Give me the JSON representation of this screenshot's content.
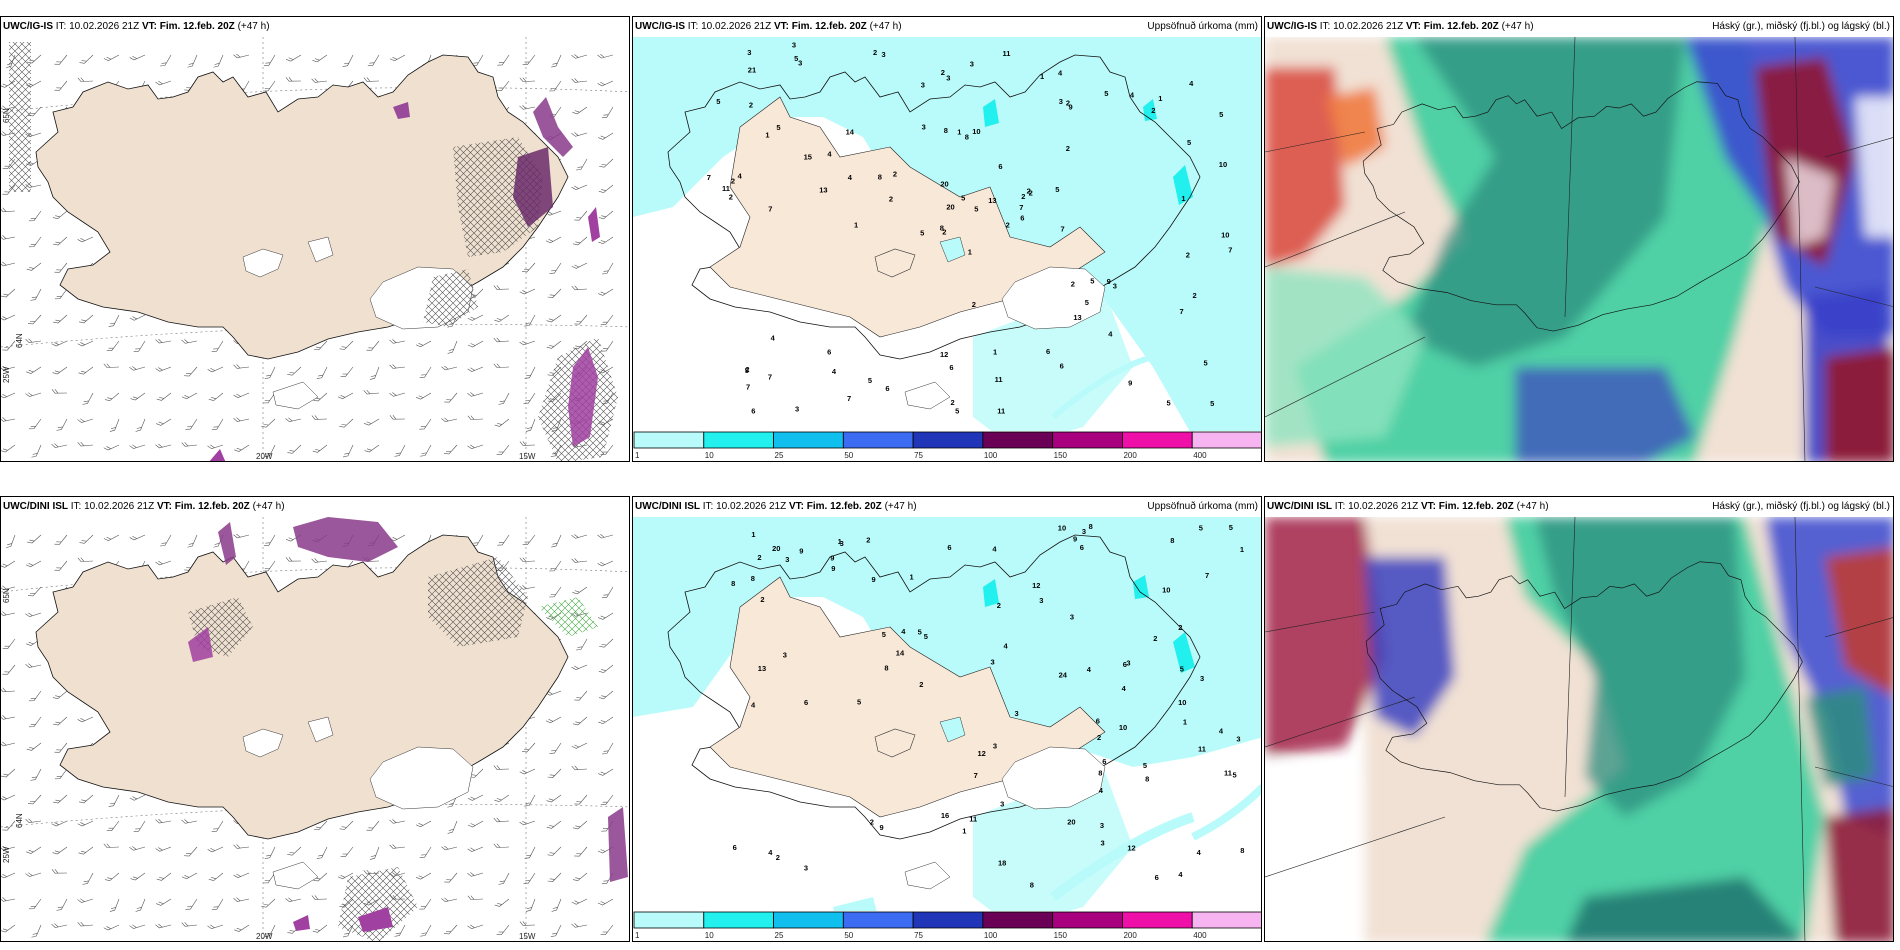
{
  "panels": [
    {
      "model": "UWC/IG-IS",
      "it": "IT: 10.02.2026 21Z",
      "vt_label": "VT:",
      "vt": "Fim. 12.feb. 20Z",
      "lead": "(+47 h)",
      "right": ""
    },
    {
      "model": "UWC/IG-IS",
      "it": "IT: 10.02.2026 21Z",
      "vt_label": "VT:",
      "vt": "Fim. 12.feb. 20Z",
      "lead": "(+47 h)",
      "right": "Uppsöfnuð úrkoma (mm)"
    },
    {
      "model": "UWC/IG-IS",
      "it": "IT: 10.02.2026 21Z",
      "vt_label": "VT:",
      "vt": "Fim. 12.feb. 20Z",
      "lead": "(+47 h)",
      "right": "Háský (gr.), miðský (fj.bl.) og lágský (bl.)"
    },
    {
      "model": "UWC/DINI ISL",
      "it": "IT: 10.02.2026 21Z",
      "vt_label": "VT:",
      "vt": "Fim. 12.feb. 20Z",
      "lead": "(+47 h)",
      "right": ""
    },
    {
      "model": "UWC/DINI ISL",
      "it": "IT: 10.02.2026 21Z",
      "vt_label": "VT:",
      "vt": "Fim. 12.feb. 20Z",
      "lead": "(+47 h)",
      "right": "Uppsöfnuð úrkoma (mm)"
    },
    {
      "model": "UWC/DINI ISL",
      "it": "IT: 10.02.2026 21Z",
      "vt_label": "VT:",
      "vt": "Fim. 12.feb. 20Z",
      "lead": "(+47 h)",
      "right": "Háský (gr.), miðský (fj.bl.) og lágský (bl.)"
    }
  ],
  "grid_labels": {
    "lon_20": "20W",
    "lon_15": "15W",
    "lon_25": "25W",
    "lat_65": "65N",
    "lat_64": "64N",
    "lat_66": "66N"
  },
  "colorbar": {
    "ticks": [
      "1",
      "10",
      "25",
      "50",
      "75",
      "100",
      "150",
      "200",
      "400"
    ],
    "colors": [
      "#b9fbfa",
      "#22f0ee",
      "#10bfee",
      "#3b6cf2",
      "#2035b8",
      "#6a0055",
      "#a8007f",
      "#ee10a8",
      "#f6b5f0"
    ]
  },
  "precip_top": [
    "1",
    "1",
    "2",
    "2",
    "2",
    "4",
    "10",
    "2",
    "2",
    "3",
    "5",
    "7",
    "5",
    "2",
    "3",
    "8",
    "6",
    "2",
    "7",
    "4",
    "1",
    "2",
    "3",
    "5",
    "3",
    "2",
    "2",
    "10",
    "8",
    "12",
    "20",
    "14",
    "5",
    "5",
    "5",
    "9",
    "11",
    "8",
    "13",
    "13",
    "7",
    "7",
    "7",
    "6",
    "6",
    "6",
    "4",
    "5",
    "5",
    "5",
    "6",
    "6",
    "5",
    "3",
    "1",
    "1",
    "3",
    "1",
    "4",
    "4",
    "4",
    "3",
    "1",
    "3",
    "5",
    "6",
    "5",
    "4",
    "5",
    "21",
    "15",
    "20",
    "11",
    "13",
    "7",
    "7",
    "2",
    "2",
    "1",
    "2",
    "9",
    "11",
    "6",
    "2",
    "7",
    "5",
    "4",
    "5",
    "7",
    "2",
    "5",
    "3",
    "9",
    "2",
    "10",
    "11",
    "5",
    "2",
    "2",
    "2",
    "2",
    "2",
    "8",
    "5",
    "3",
    "4",
    "3"
  ],
  "precip_bot": [
    "2",
    "1",
    "4",
    "3",
    "5",
    "12",
    "6",
    "5",
    "8",
    "8",
    "4",
    "2",
    "4",
    "3",
    "12",
    "3",
    "5",
    "5",
    "8",
    "8",
    "11",
    "10",
    "9",
    "6",
    "9",
    "4",
    "18",
    "20",
    "14",
    "10",
    "8",
    "8",
    "6",
    "11",
    "7",
    "8",
    "4",
    "16",
    "5",
    "20",
    "24",
    "13",
    "3",
    "4",
    "5",
    "6",
    "4",
    "6",
    "3",
    "1",
    "9",
    "10",
    "9",
    "4",
    "4",
    "3",
    "5",
    "3",
    "2",
    "2",
    "3",
    "3",
    "3",
    "2",
    "9",
    "10",
    "11",
    "12",
    "9",
    "2",
    "5",
    "4",
    "1",
    "1",
    "1",
    "2",
    "3",
    "2",
    "8",
    "5",
    "4",
    "2",
    "3",
    "6",
    "6",
    "7",
    "3",
    "8",
    "1",
    "2",
    "3",
    "6",
    "3",
    "3"
  ]
}
